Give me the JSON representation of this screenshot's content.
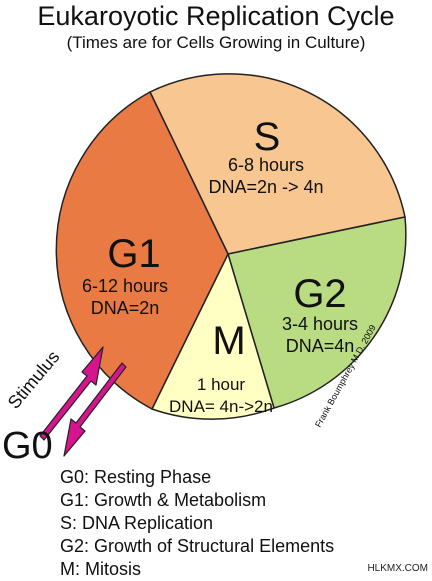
{
  "title": "Eukaroyotic Replication Cycle",
  "subtitle": "(Times are for Cells Growing in Culture)",
  "phases": {
    "s": {
      "label": "S",
      "time": "6-8 hours",
      "dna": "DNA=2n -> 4n",
      "color": "#F8C690"
    },
    "g1": {
      "label": "G1",
      "time": "6-12 hours",
      "dna": "DNA=2n",
      "color": "#EA7A44"
    },
    "g2": {
      "label": "G2",
      "time": "3-4 hours",
      "dna": "DNA=4n",
      "color": "#B9DC82"
    },
    "m": {
      "label": "M",
      "time": "1 hour",
      "dna": "DNA= 4n->2n",
      "color": "#FFFFC4"
    }
  },
  "g0": {
    "label": "G0",
    "stimulus": "Stimulus",
    "arrow_color": "#D6148E"
  },
  "credit": "Frank Boumphrey M.D. 2009",
  "legend": [
    "G0: Resting Phase",
    "G1: Growth & Metabolism",
    "S:   DNA Replication",
    "G2: Growth of Structural Elements",
    "M:  Mitosis"
  ],
  "watermark": "HLKMX.COM"
}
